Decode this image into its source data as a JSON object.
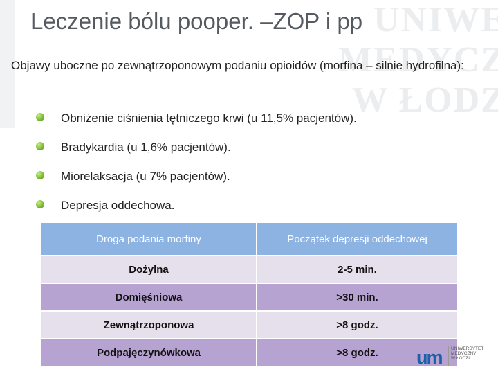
{
  "watermark": {
    "lines": [
      "UNIWE",
      "MEDYCZ",
      "W ŁODZ"
    ]
  },
  "title": "Leczenie bólu pooper.  –ZOP i pp",
  "intro": "Objawy uboczne po zewnątrzoponowym podaniu opioidów (morfina – silnie hydrofilna):",
  "bullets": [
    "Obniżenie ciśnienia tętniczego krwi (u 11,5% pacjentów).",
    "Bradykardia (u 1,6% pacjentów).",
    "Miorelaksacja (u 7% pacjentów).",
    "Depresja oddechowa."
  ],
  "table": {
    "headers": [
      "Droga podania morfiny",
      "Początek depresji oddechowej"
    ],
    "rows": [
      [
        "Dożylna",
        "2-5 min."
      ],
      [
        "Domięśniowa",
        ">30 min."
      ],
      [
        "Zewnątrzoponowa",
        ">8 godz."
      ],
      [
        "Podpajęczynówkowa",
        ">8 godz."
      ]
    ]
  },
  "logo": {
    "mark": "um",
    "lines": [
      "UNIWERSYTET",
      "MEDYCZNY",
      "W ŁODZI"
    ]
  },
  "colors": {
    "header": "#8db3e2",
    "row_light": "#e6e0ec",
    "row_dark": "#b7a3d1",
    "bullet": "#8cc63f"
  }
}
